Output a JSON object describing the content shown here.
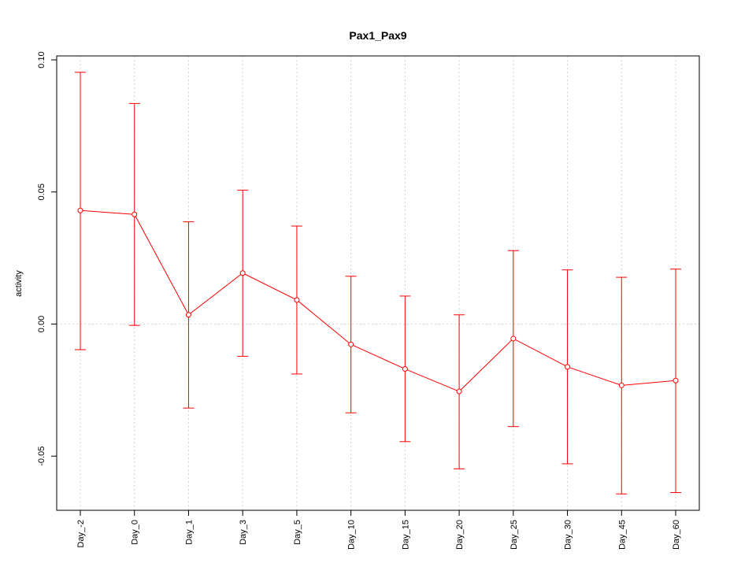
{
  "chart_data": {
    "type": "line",
    "title": "Pax1_Pax9",
    "xlabel": "",
    "ylabel": "activity",
    "categories": [
      "Day_-2",
      "Day_0",
      "Day_1",
      "Day_3",
      "Day_5",
      "Day_10",
      "Day_15",
      "Day_20",
      "Day_25",
      "Day_30",
      "Day_45",
      "Day_60"
    ],
    "series": [
      {
        "values": [
          0.043,
          0.0415,
          0.0035,
          0.0193,
          0.0091,
          -0.0077,
          -0.017,
          -0.0255,
          -0.0055,
          -0.0162,
          -0.0232,
          -0.0214
        ],
        "upper": [
          0.0953,
          0.0835,
          0.0387,
          0.0507,
          0.0371,
          0.0181,
          0.0106,
          0.0035,
          0.0278,
          0.0205,
          0.0177,
          0.0208
        ],
        "lower": [
          -0.0097,
          -0.0005,
          -0.0318,
          -0.0122,
          -0.0189,
          -0.0336,
          -0.0445,
          -0.0548,
          -0.0388,
          -0.0529,
          -0.0643,
          -0.0638
        ],
        "color": "#ff0000"
      }
    ],
    "ylim": [
      -0.0705,
      0.1015
    ],
    "yticks": [
      -0.05,
      0.0,
      0.05,
      0.1
    ],
    "ytick_labels": [
      "-0.05",
      "0.00",
      "0.05",
      "0.10"
    ],
    "grid": true,
    "grid_color": "#d3d3d3",
    "axis_color": "#000000"
  }
}
